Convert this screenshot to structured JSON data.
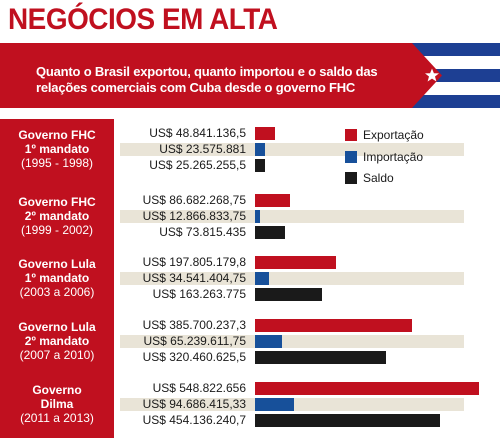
{
  "header": {
    "title": "NEGÓCIOS EM ALTA",
    "subtitle_line1": "Quanto o Brasil exportou, quanto importou e o saldo das",
    "subtitle_line2": "relações comerciais com Cuba desde o governo FHC"
  },
  "flag": {
    "name": "cuba-flag",
    "colors": {
      "blue": "#1d3f93",
      "red": "#c0101f",
      "white": "#ffffff"
    }
  },
  "colors": {
    "export": "#c0101f",
    "import": "#17509a",
    "saldo": "#1a1a1a",
    "band": "#e9e4d7",
    "panel": "#c0101f"
  },
  "legend": [
    {
      "label": "Exportação",
      "color": "#c0101f"
    },
    {
      "label": "Importação",
      "color": "#17509a"
    },
    {
      "label": "Saldo",
      "color": "#1a1a1a"
    }
  ],
  "chart_data": {
    "type": "bar",
    "title": "NEGÓCIOS EM ALTA",
    "subtitle": "Quanto o Brasil exportou, quanto importou e o saldo das relações comerciais com Cuba desde o governo FHC",
    "orientation": "horizontal",
    "grid": false,
    "legend_position": "top-right",
    "categories": [
      {
        "name_lines": [
          "Governo FHC",
          "1º mandato"
        ],
        "years": "(1995 - 1998)"
      },
      {
        "name_lines": [
          "Governo FHC",
          "2º mandato"
        ],
        "years": "(1999 - 2002)"
      },
      {
        "name_lines": [
          "Governo Lula",
          "1º mandato"
        ],
        "years": "(2003 a 2006)"
      },
      {
        "name_lines": [
          "Governo Lula",
          "2º mandato"
        ],
        "years": "(2007 a 2010)"
      },
      {
        "name_lines": [
          "Governo",
          "Dilma"
        ],
        "years": "(2011 a 2013)"
      }
    ],
    "series": [
      {
        "name": "Exportação",
        "color": "#c0101f",
        "values": [
          48841136.5,
          86682268.75,
          197805179.8,
          385700237.3,
          548822656
        ],
        "labels": [
          "US$ 48.841.136,5",
          "US$ 86.682.268,75",
          "US$ 197.805.179,8",
          "US$ 385.700.237,3",
          "US$ 548.822.656"
        ]
      },
      {
        "name": "Importação",
        "color": "#17509a",
        "values": [
          23575881,
          12866833.75,
          34541404.75,
          65239611.75,
          94686415.33
        ],
        "labels": [
          "US$ 23.575.881",
          "US$ 12.866.833,75",
          "US$ 34.541.404,75",
          "US$ 65.239.611,75",
          "US$ 94.686.415,33"
        ]
      },
      {
        "name": "Saldo",
        "color": "#1a1a1a",
        "values": [
          25265255.5,
          73815435,
          163263775,
          320460625.5,
          454136240.7
        ],
        "labels": [
          "US$ 25.265.255,5",
          "US$ 73.815.435",
          "US$ 163.263.775",
          "US$ 320.460.625,5",
          "US$ 454.136.240,7"
        ]
      }
    ],
    "xlim": [
      0,
      548822656
    ]
  }
}
